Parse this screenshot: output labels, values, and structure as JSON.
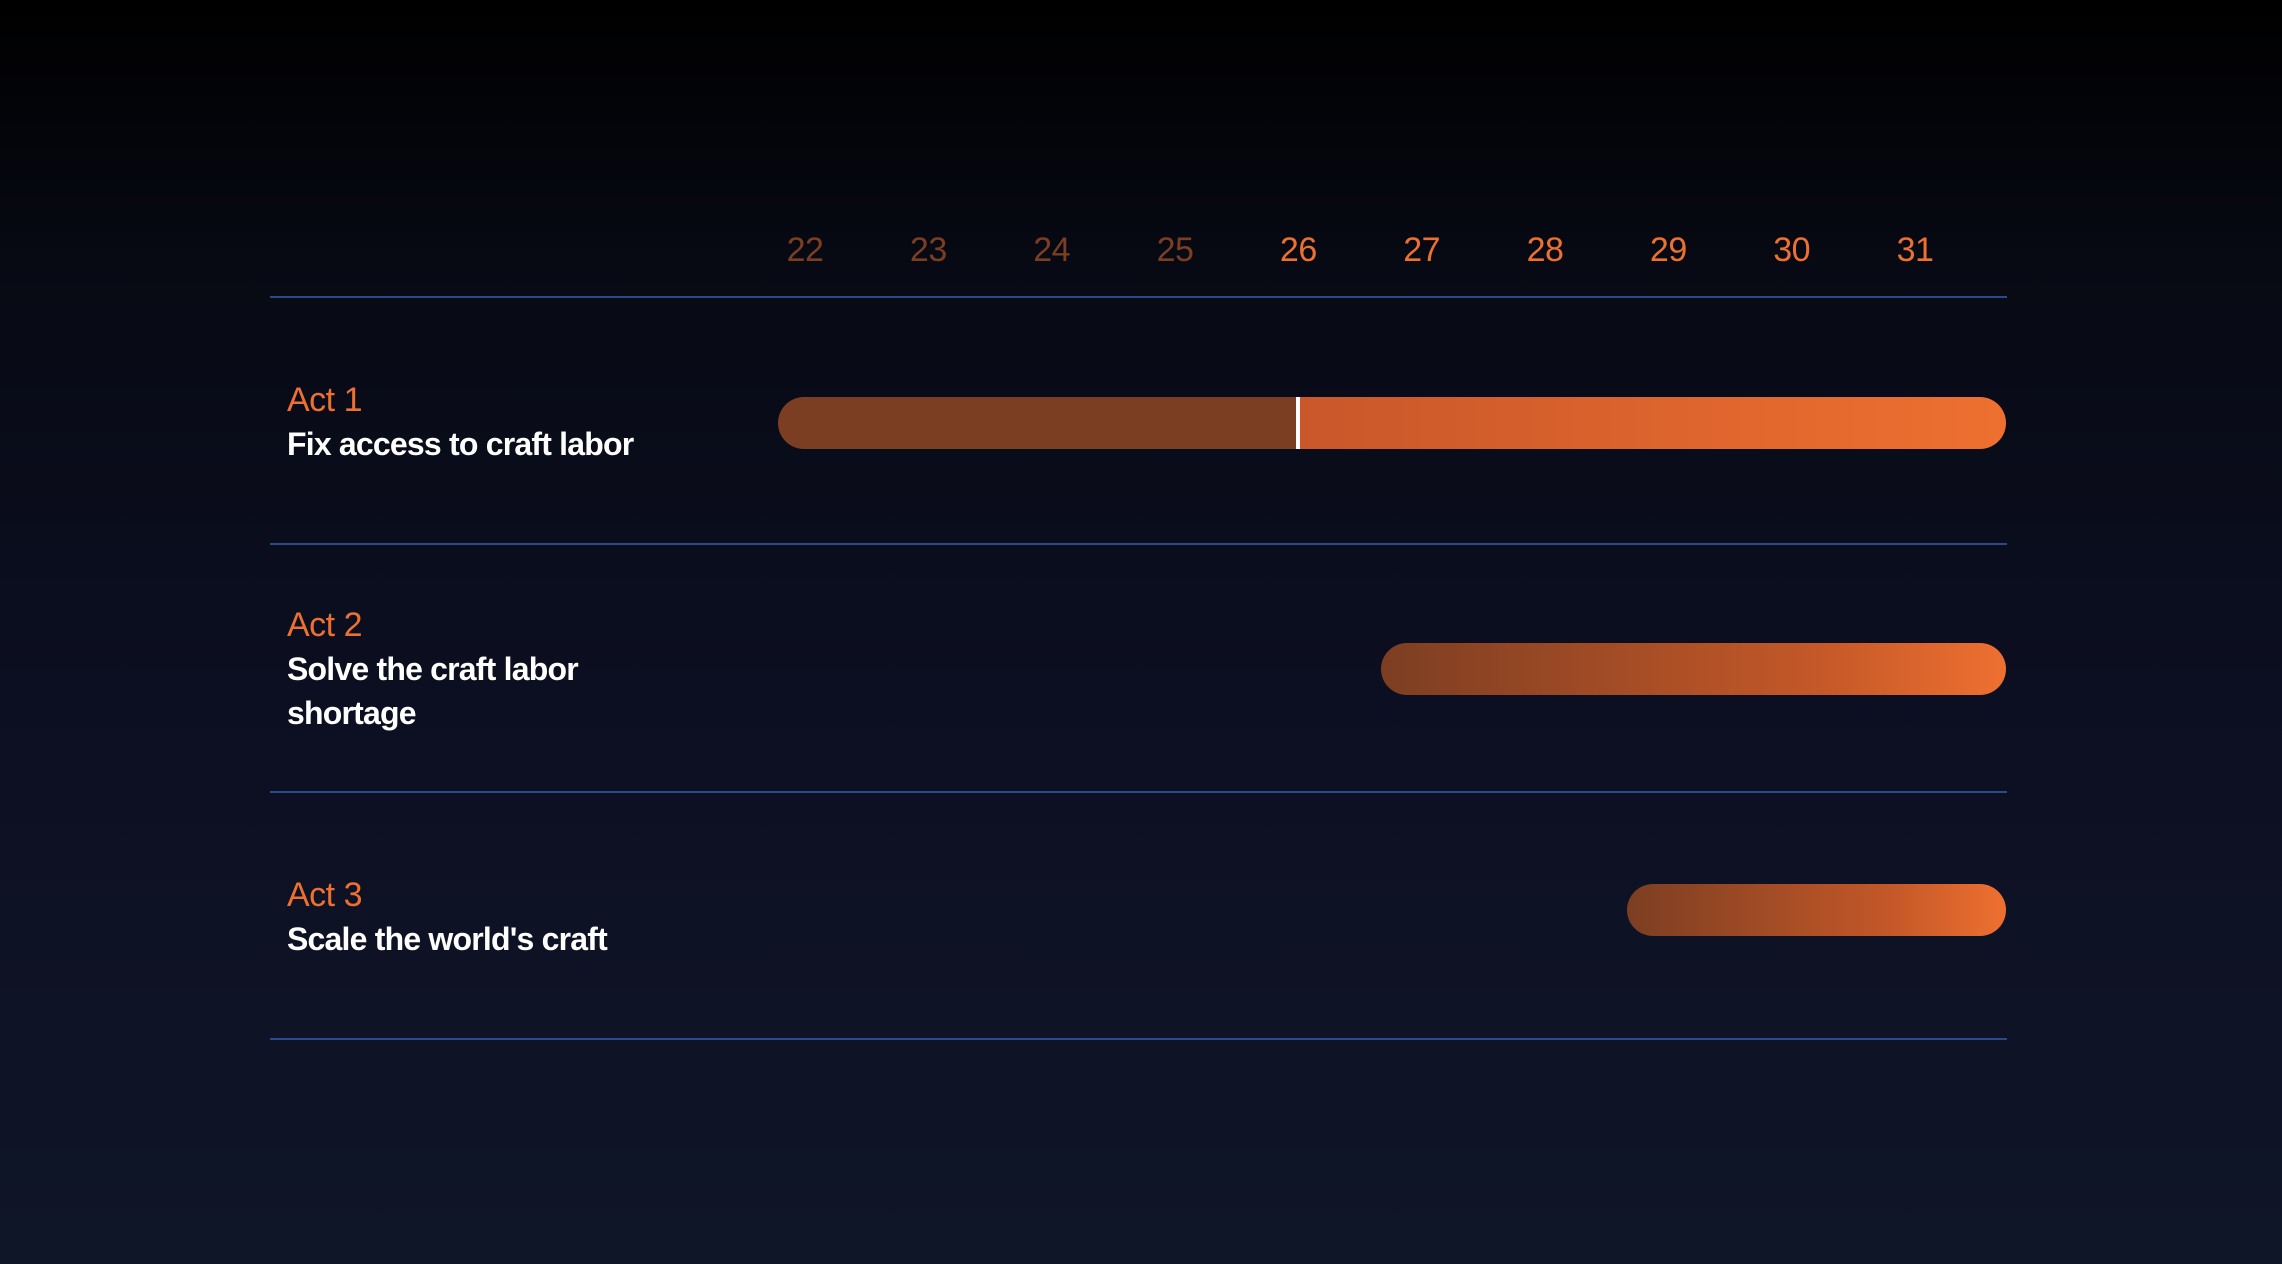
{
  "timeline": {
    "years": [
      "22",
      "23",
      "24",
      "25",
      "26",
      "27",
      "28",
      "29",
      "30",
      "31"
    ],
    "past_year_count": 4,
    "current_marker_year": 26,
    "acts": [
      {
        "label": "Act 1",
        "title": "Fix access to craft labor",
        "start_year": 22,
        "end_year": 31
      },
      {
        "label": "Act 2",
        "title": "Solve the craft labor shortage",
        "start_year": 26.7,
        "end_year": 31
      },
      {
        "label": "Act 3",
        "title": "Scale the world's craft",
        "start_year": 28.7,
        "end_year": 31
      }
    ],
    "colors": {
      "accent": "#ee7030",
      "muted_accent": "#7c3e22",
      "divider": "#2a4a8c",
      "title_text": "#ffffff"
    }
  }
}
